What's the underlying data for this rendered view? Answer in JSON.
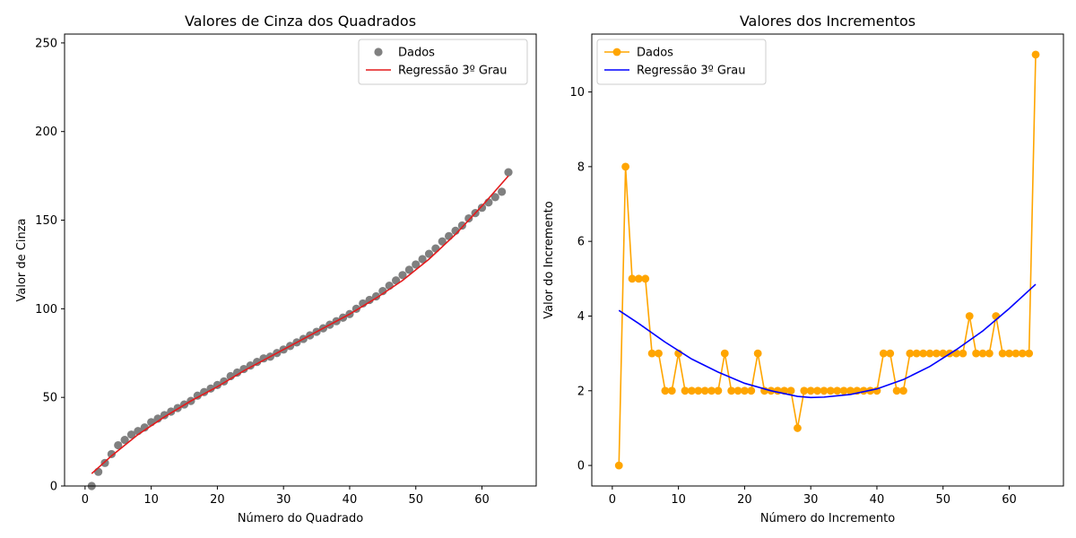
{
  "chart_data": [
    {
      "type": "scatter",
      "title": "Valores de Cinza dos Quadrados",
      "xlabel": "Número do Quadrado",
      "ylabel": "Valor de Cinza",
      "xlim": [
        -3.1,
        68.2
      ],
      "ylim": [
        0,
        255
      ],
      "xticks": [
        0,
        10,
        20,
        30,
        40,
        50,
        60
      ],
      "yticks": [
        0,
        50,
        100,
        150,
        200,
        250
      ],
      "grid": false,
      "legend_position": "top-right",
      "series": [
        {
          "name": "Dados",
          "kind": "scatter",
          "color": "#808080",
          "x": [
            1,
            2,
            3,
            4,
            5,
            6,
            7,
            8,
            9,
            10,
            11,
            12,
            13,
            14,
            15,
            16,
            17,
            18,
            19,
            20,
            21,
            22,
            23,
            24,
            25,
            26,
            27,
            28,
            29,
            30,
            31,
            32,
            33,
            34,
            35,
            36,
            37,
            38,
            39,
            40,
            41,
            42,
            43,
            44,
            45,
            46,
            47,
            48,
            49,
            50,
            51,
            52,
            53,
            54,
            55,
            56,
            57,
            58,
            59,
            60,
            61,
            62,
            63,
            64
          ],
          "y": [
            0,
            8,
            13,
            18,
            23,
            26,
            29,
            31,
            33,
            36,
            38,
            40,
            42,
            44,
            46,
            48,
            51,
            53,
            55,
            57,
            59,
            62,
            64,
            66,
            68,
            70,
            72,
            73,
            75,
            77,
            79,
            81,
            83,
            85,
            87,
            89,
            91,
            93,
            95,
            97,
            100,
            103,
            105,
            107,
            110,
            113,
            116,
            119,
            122,
            125,
            128,
            131,
            134,
            138,
            141,
            144,
            147,
            151,
            154,
            157,
            160,
            163,
            166,
            177
          ]
        },
        {
          "name": "Regressão 3º Grau",
          "kind": "line",
          "color": "#e41a1c",
          "x": [
            1,
            4,
            8,
            12,
            16,
            20,
            24,
            28,
            32,
            36,
            40,
            44,
            48,
            52,
            56,
            60,
            64
          ],
          "y": [
            7,
            17,
            29,
            39,
            48,
            56,
            65,
            73,
            81,
            89,
            97,
            106,
            116,
            128,
            142,
            158,
            175
          ]
        }
      ]
    },
    {
      "type": "line",
      "title": "Valores dos Incrementos",
      "xlabel": "Número do Incremento",
      "ylabel": "Valor do Incremento",
      "xlim": [
        -3.1,
        68.2
      ],
      "ylim": [
        -0.55,
        11.55
      ],
      "xticks": [
        0,
        10,
        20,
        30,
        40,
        50,
        60
      ],
      "yticks": [
        0,
        2,
        4,
        6,
        8,
        10
      ],
      "grid": false,
      "legend_position": "top-left",
      "series": [
        {
          "name": "Dados",
          "kind": "line-marker",
          "color": "#ffa500",
          "x": [
            1,
            2,
            3,
            4,
            5,
            6,
            7,
            8,
            9,
            10,
            11,
            12,
            13,
            14,
            15,
            16,
            17,
            18,
            19,
            20,
            21,
            22,
            23,
            24,
            25,
            26,
            27,
            28,
            29,
            30,
            31,
            32,
            33,
            34,
            35,
            36,
            37,
            38,
            39,
            40,
            41,
            42,
            43,
            44,
            45,
            46,
            47,
            48,
            49,
            50,
            51,
            52,
            53,
            54,
            55,
            56,
            57,
            58,
            59,
            60,
            61,
            62,
            63,
            64
          ],
          "y": [
            0,
            8,
            5,
            5,
            5,
            3,
            3,
            2,
            2,
            3,
            2,
            2,
            2,
            2,
            2,
            2,
            3,
            2,
            2,
            2,
            2,
            3,
            2,
            2,
            2,
            2,
            2,
            1,
            2,
            2,
            2,
            2,
            2,
            2,
            2,
            2,
            2,
            2,
            2,
            2,
            3,
            3,
            2,
            2,
            3,
            3,
            3,
            3,
            3,
            3,
            3,
            3,
            3,
            4,
            3,
            3,
            3,
            4,
            3,
            3,
            3,
            3,
            3,
            11
          ]
        },
        {
          "name": "Regressão 3º Grau",
          "kind": "line",
          "color": "#0000ff",
          "x": [
            1,
            4,
            8,
            12,
            16,
            20,
            24,
            28,
            30,
            32,
            36,
            40,
            44,
            48,
            52,
            56,
            60,
            64
          ],
          "y": [
            4.15,
            3.8,
            3.3,
            2.85,
            2.5,
            2.2,
            2.0,
            1.85,
            1.82,
            1.83,
            1.9,
            2.05,
            2.3,
            2.65,
            3.1,
            3.6,
            4.2,
            4.85
          ]
        }
      ]
    }
  ]
}
